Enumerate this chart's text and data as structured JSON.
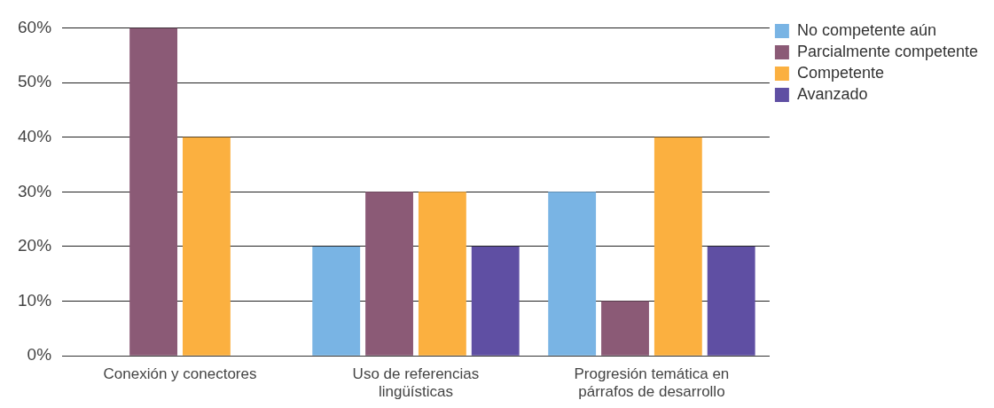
{
  "chart_data": {
    "type": "bar",
    "categories": [
      "Conexión y conectores",
      "Uso de referencias lingüísticas",
      "Progresión temática en párrafos de desarrollo"
    ],
    "series": [
      {
        "name": "No competente aún",
        "color": "#79b4e4",
        "values": [
          0,
          20,
          30
        ]
      },
      {
        "name": "Parcialmente competente",
        "color": "#8b5a76",
        "values": [
          60,
          30,
          10
        ]
      },
      {
        "name": "Competente",
        "color": "#fbb040",
        "values": [
          40,
          30,
          40
        ]
      },
      {
        "name": "Avanzado",
        "color": "#5f4fa3",
        "values": [
          0,
          20,
          20
        ]
      }
    ],
    "ylim": [
      0,
      60
    ],
    "yticks": [
      {
        "value": 0,
        "label": "0%"
      },
      {
        "value": 10,
        "label": "10%"
      },
      {
        "value": 20,
        "label": "20%"
      },
      {
        "value": 30,
        "label": "30%"
      },
      {
        "value": 40,
        "label": "40%"
      },
      {
        "value": 50,
        "label": "50%"
      },
      {
        "value": 60,
        "label": "60%"
      }
    ],
    "grid": "y",
    "legend": "top right"
  }
}
